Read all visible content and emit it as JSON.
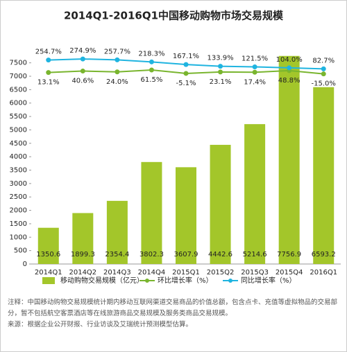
{
  "chart_data": {
    "type": "bar",
    "title": "2014Q1-2016Q1中国移动购物市场交易规模",
    "categories": [
      "2014Q1",
      "2014Q2",
      "2014Q3",
      "2014Q4",
      "2015Q1",
      "2015Q2",
      "2015Q3",
      "2015Q4",
      "2016Q1"
    ],
    "series": [
      {
        "name": "移动购物交易规模（亿元）",
        "type": "bar",
        "color": "#a3c62a",
        "values": [
          1350.6,
          1899.3,
          2354.4,
          3802.3,
          3607.9,
          4442.6,
          5214.6,
          7756.9,
          6593.2
        ]
      },
      {
        "name": "环比增长率（%）",
        "type": "line",
        "axis": "y2",
        "color": "#79b52e",
        "values": [
          13.1,
          40.6,
          24.0,
          61.5,
          -5.1,
          23.1,
          17.4,
          48.8,
          -15.0
        ],
        "value_labels": [
          "13.1%",
          "40.6%",
          "24.0%",
          "61.5%",
          "-5.1%",
          "23.1%",
          "17.4%",
          "48.8%",
          "-15.0%"
        ]
      },
      {
        "name": "同比增长率（%）",
        "type": "line",
        "axis": "y2",
        "color": "#1fb4e0",
        "values": [
          254.7,
          274.9,
          257.7,
          218.3,
          167.1,
          133.9,
          121.5,
          104.0,
          82.7
        ],
        "value_labels": [
          "254.7%",
          "274.9%",
          "257.7%",
          "218.3%",
          "167.1%",
          "133.9%",
          "121.5%",
          "104.0%",
          "82.7%"
        ]
      }
    ],
    "ylim": [
      0,
      7750
    ],
    "yticks": [
      0,
      500,
      1000,
      1500,
      2000,
      2500,
      3000,
      3500,
      4000,
      4500,
      5000,
      5500,
      6000,
      6500,
      7000,
      7500
    ],
    "y2lim": [
      -3700,
      330
    ],
    "grid": false
  },
  "notes": [
    "注释：中国移动购物交易规模统计期内移动互联网渠道交易商品的价值总额，包含点卡、充值等虚拟物品的交易部分，暂不包括航空客票酒店等在线旅游商品交易规模及服务类商品交易规模。",
    "来源：根据企业公开财报、行业访谈及艾瑞统计预测模型估算。"
  ]
}
